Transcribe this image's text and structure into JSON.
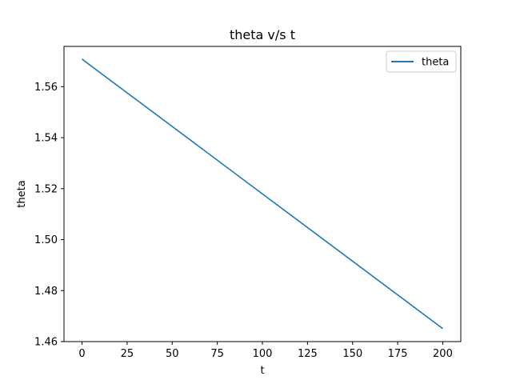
{
  "chart_data": {
    "type": "line",
    "title": "theta v/s t",
    "xlabel": "t",
    "ylabel": "theta",
    "xlim": [
      -10,
      210
    ],
    "ylim": [
      1.46,
      1.5758
    ],
    "xticks": [
      0,
      25,
      50,
      75,
      100,
      125,
      150,
      175,
      200
    ],
    "yticks": [
      1.46,
      1.48,
      1.5,
      1.52,
      1.54,
      1.56
    ],
    "ytick_labels": [
      "1.46",
      "1.48",
      "1.50",
      "1.52",
      "1.54",
      "1.56"
    ],
    "grid": false,
    "legend_position": "top-right",
    "series": [
      {
        "name": "theta",
        "color": "#1f77b4",
        "x": [
          0,
          200
        ],
        "y": [
          1.5708,
          1.4651
        ]
      }
    ]
  }
}
